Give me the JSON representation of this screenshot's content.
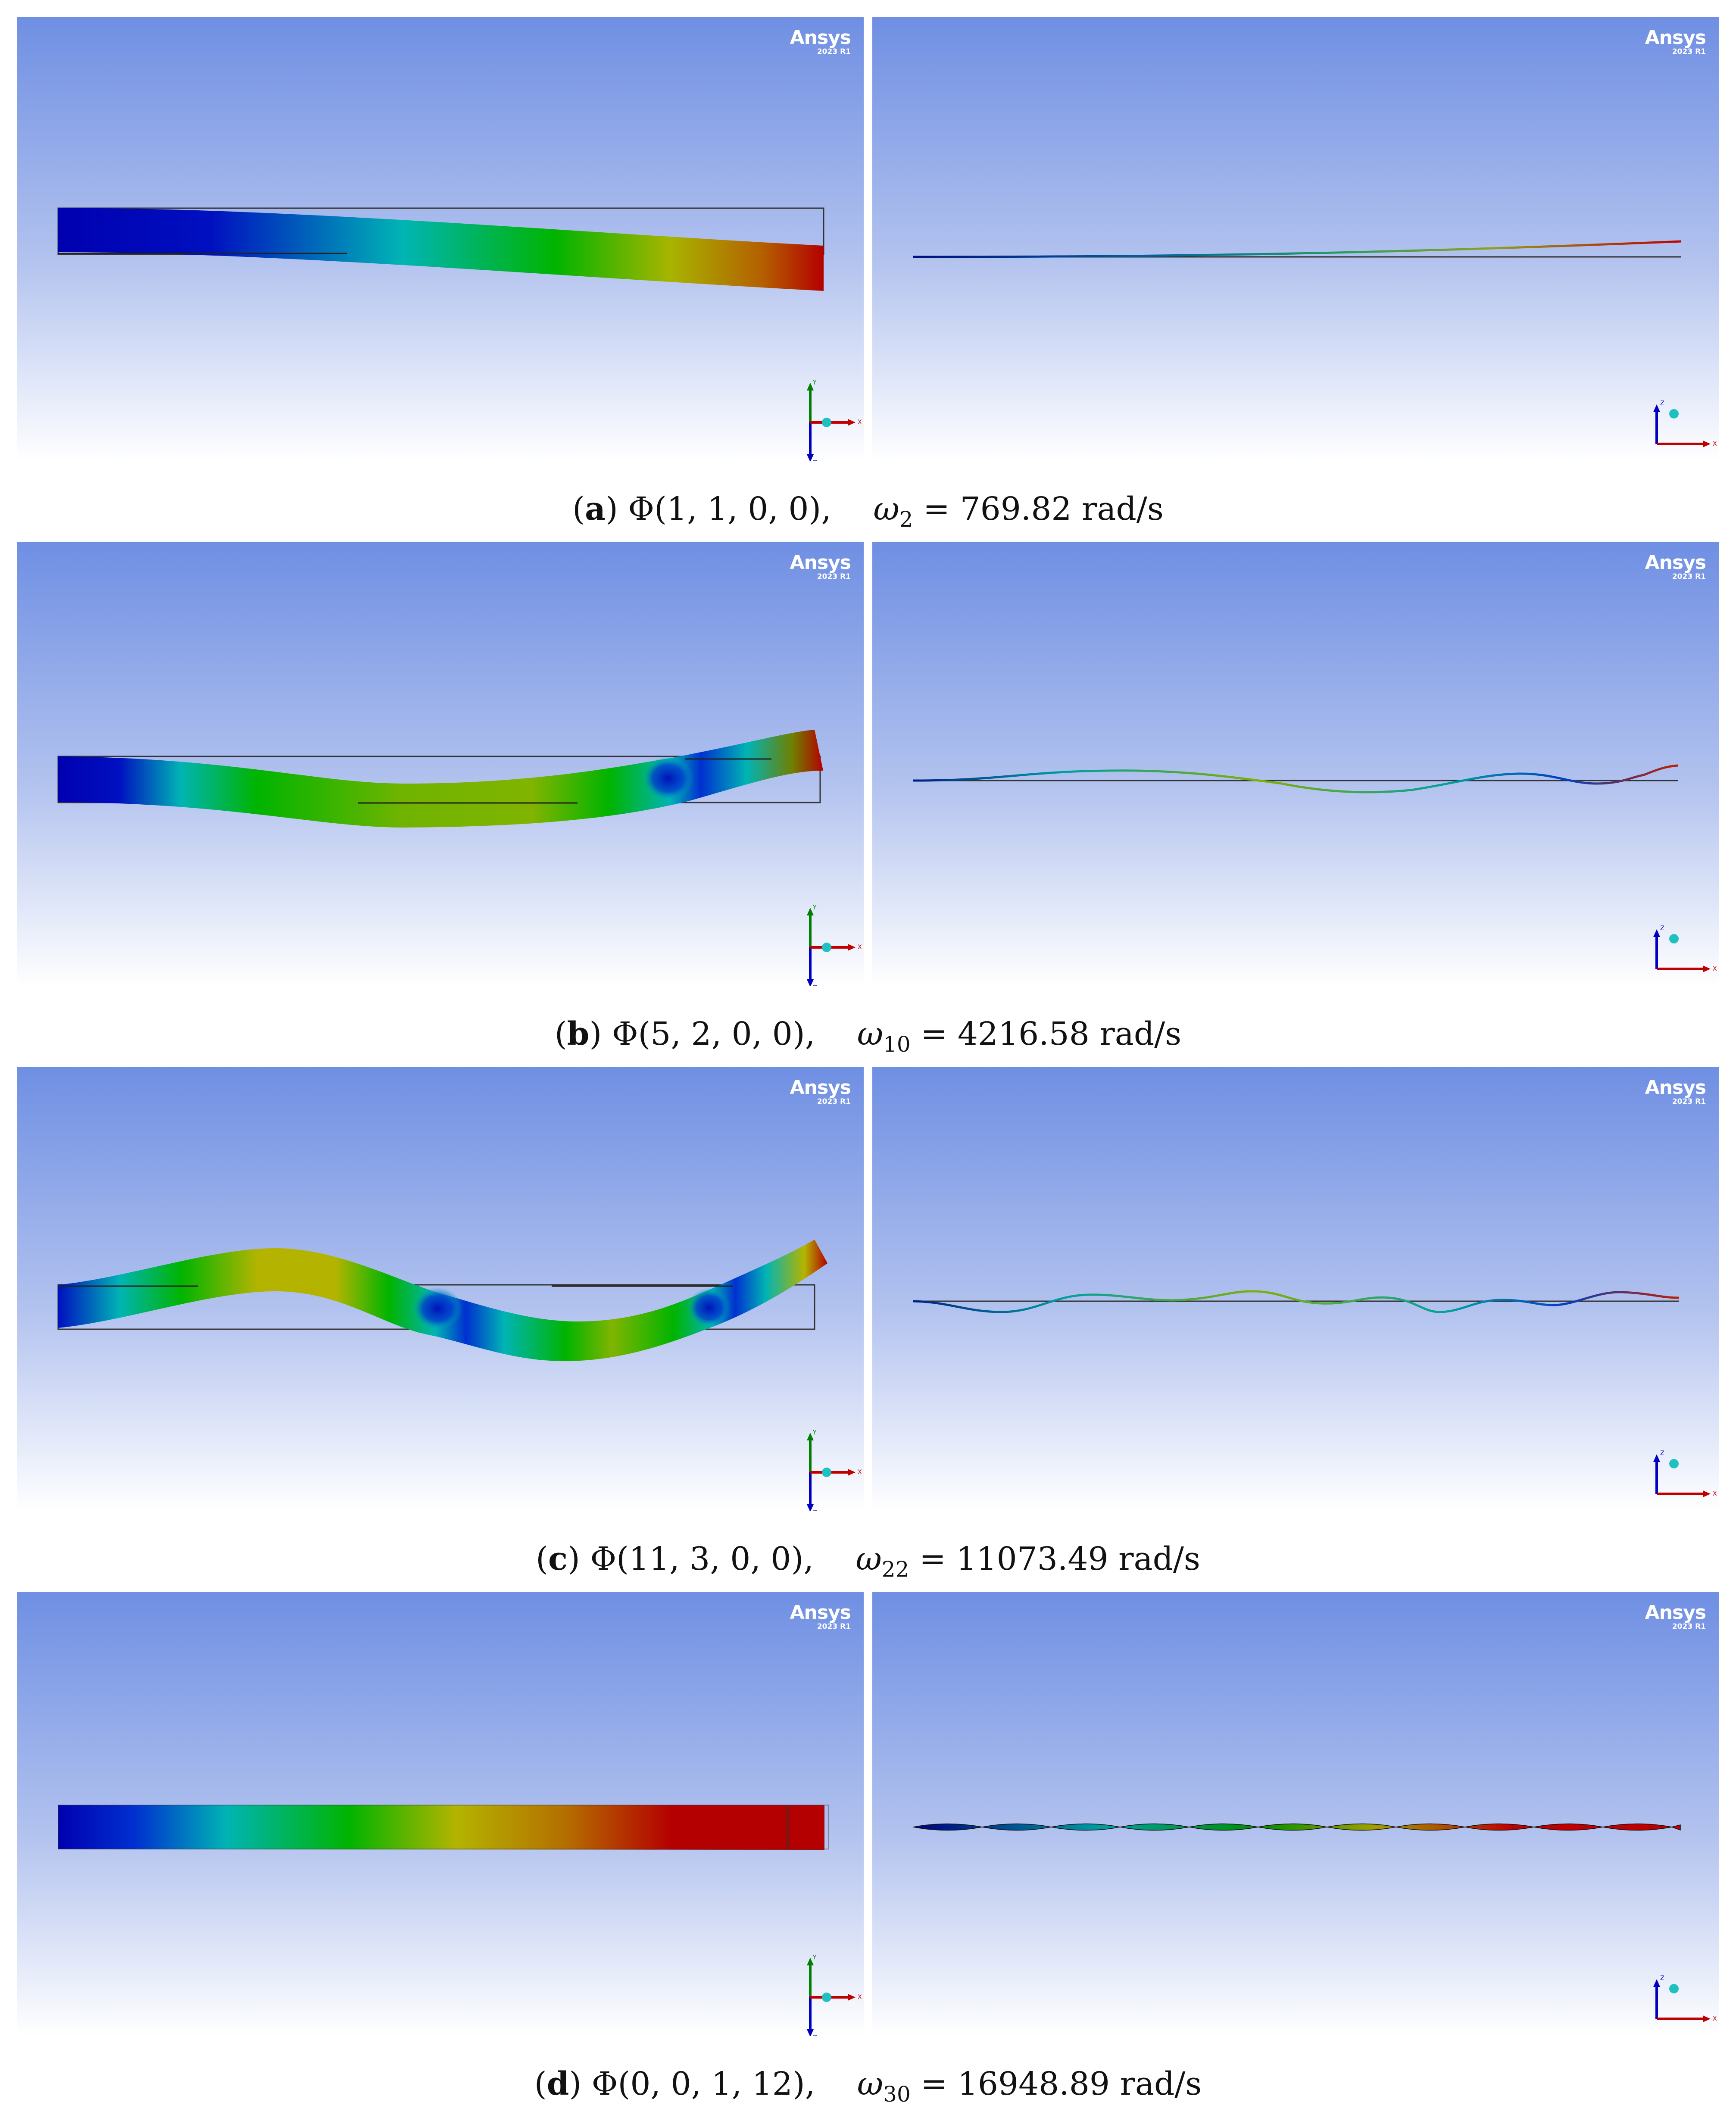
{
  "brand": {
    "name": "Ansys",
    "version": "2023 R1"
  },
  "axes": {
    "x": "X",
    "y": "Y",
    "z": "Z"
  },
  "panels": [
    {
      "letter": "a",
      "phi": "Φ(1, 1, 0, 0),",
      "omega_symbol": "ω",
      "omega_index": "2",
      "equals": "=",
      "value": "769.82",
      "unit": "rad/s"
    },
    {
      "letter": "b",
      "phi": "Φ(5, 2, 0, 0),",
      "omega_symbol": "ω",
      "omega_index": "10",
      "equals": "=",
      "value": "4216.58",
      "unit": "rad/s"
    },
    {
      "letter": "c",
      "phi": "Φ(11, 3, 0, 0),",
      "omega_symbol": "ω",
      "omega_index": "22",
      "equals": "=",
      "value": "11073.49",
      "unit": "rad/s"
    },
    {
      "letter": "d",
      "phi": "Φ(0, 0, 1, 12),",
      "omega_symbol": "ω",
      "omega_index": "30",
      "equals": "=",
      "value": "16948.89",
      "unit": "rad/s"
    }
  ],
  "colors": {
    "sky_top": "#6f8fe3",
    "sky_bottom": "#ffffff",
    "contour": [
      "#0000b4",
      "#00b4b4",
      "#00b400",
      "#b4b400",
      "#b40000"
    ]
  }
}
